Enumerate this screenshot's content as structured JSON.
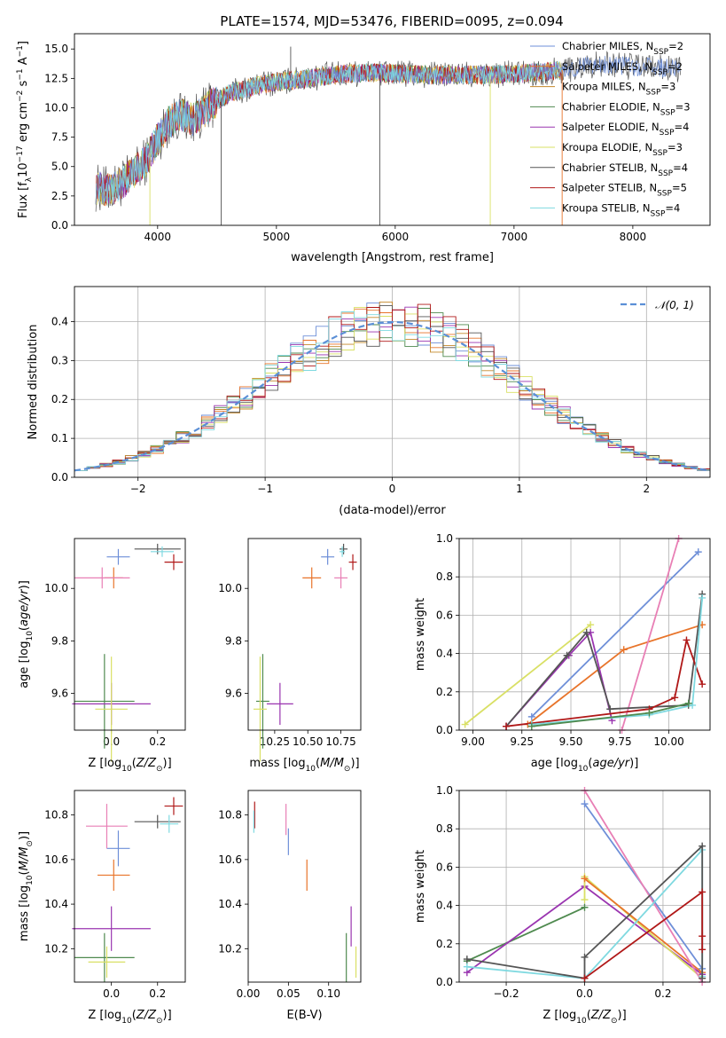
{
  "title": "PLATE=1574, MJD=53476, FIBERID=0095, z=0.094",
  "colors": {
    "Chabrier MILES": "#6e8fd8",
    "Salpeter MILES": "#e8742a",
    "Kroupa MILES": "#c4882a",
    "Chabrier ELODIE": "#4f8a4f",
    "Salpeter ELODIE": "#9a35b0",
    "Kroupa ELODIE": "#d9e065",
    "Chabrier STELIB": "#555555",
    "Salpeter STELIB": "#b01818",
    "Kroupa STELIB": "#7fd9e0",
    "pink": "#e87fb5"
  },
  "chart_data": [
    {
      "id": "spectrum",
      "type": "line",
      "title": "PLATE=1574, MJD=53476, FIBERID=0095, z=0.094",
      "xlabel": "wavelength [Angstrom, rest frame]",
      "ylabel": "Flux [f$_\\lambda$10$^{-17}$ erg cm$^{-2}$ s$^{-1}$ A$^{-1}$]",
      "xlim": [
        3300,
        8650
      ],
      "ylim": [
        0,
        16.3
      ],
      "xticks": [
        4000,
        5000,
        6000,
        7000,
        8000
      ],
      "yticks": [
        0.0,
        2.5,
        5.0,
        7.5,
        10.0,
        12.5,
        15.0
      ],
      "xtick_labels": [
        "4000",
        "5000",
        "6000",
        "7000",
        "8000"
      ],
      "ytick_labels": [
        "0.0",
        "2.5",
        "5.0",
        "7.5",
        "10.0",
        "12.5",
        "15.0"
      ],
      "continuum": {
        "x": [
          3480,
          3600,
          3700,
          3800,
          3900,
          4000,
          4100,
          4200,
          4300,
          4400,
          4500,
          4600,
          4800,
          5000,
          5200,
          5400,
          5600,
          5800,
          6000,
          6200,
          6400,
          6600,
          6800,
          7000,
          7200,
          7400,
          7600,
          7800,
          8000,
          8200,
          8400
        ],
        "y": [
          3.2,
          3.0,
          3.6,
          4.5,
          5.5,
          7.3,
          8.8,
          9.4,
          9.0,
          9.8,
          10.6,
          11.2,
          11.8,
          12.2,
          12.4,
          12.7,
          12.9,
          13.0,
          12.9,
          12.8,
          12.8,
          12.8,
          12.8,
          12.9,
          13.0,
          13.2,
          13.6,
          13.7,
          13.5,
          13.4,
          13.3
        ]
      },
      "legend": {
        "placement": "upper-right",
        "entries": [
          {
            "name": "Chabrier MILES, N$_{SSP}$=2",
            "label": "Chabrier MILES, N",
            "sub": "SSP",
            "suffix": "=2",
            "color_key": "Chabrier MILES"
          },
          {
            "name": "Salpeter MILES, N$_{SSP}$=2",
            "label": "Salpeter MILES, N",
            "sub": "SSP",
            "suffix": "=2",
            "color_key": "Salpeter MILES"
          },
          {
            "name": "Kroupa MILES, N$_{SSP}$=3",
            "label": "Kroupa MILES, N",
            "sub": "SSP",
            "suffix": "=3",
            "color_key": "Kroupa MILES"
          },
          {
            "name": "Chabrier ELODIE, N$_{SSP}$=3",
            "label": "Chabrier ELODIE, N",
            "sub": "SSP",
            "suffix": "=3",
            "color_key": "Chabrier ELODIE"
          },
          {
            "name": "Salpeter ELODIE, N$_{SSP}$=4",
            "label": "Salpeter ELODIE, N",
            "sub": "SSP",
            "suffix": "=4",
            "color_key": "Salpeter ELODIE"
          },
          {
            "name": "Kroupa ELODIE, N$_{SSP}$=3",
            "label": "Kroupa ELODIE, N",
            "sub": "SSP",
            "suffix": "=3",
            "color_key": "Kroupa ELODIE"
          },
          {
            "name": "Chabrier STELIB, N$_{SSP}$=4",
            "label": "Chabrier STELIB, N",
            "sub": "SSP",
            "suffix": "=4",
            "color_key": "Chabrier STELIB"
          },
          {
            "name": "Salpeter STELIB, N$_{SSP}$=5",
            "label": "Salpeter STELIB, N",
            "sub": "SSP",
            "suffix": "=5",
            "color_key": "Salpeter STELIB"
          },
          {
            "name": "Kroupa STELIB, N$_{SSP}$=4",
            "label": "Kroupa STELIB, N",
            "sub": "SSP",
            "suffix": "=4",
            "color_key": "Kroupa STELIB"
          }
        ]
      },
      "grid": false
    },
    {
      "id": "residuals",
      "type": "histogram",
      "xlabel": "(data-model)/error",
      "ylabel": "Normed distribution",
      "xlim": [
        -2.5,
        2.5
      ],
      "ylim": [
        0,
        0.49
      ],
      "xticks": [
        -2,
        -1,
        0,
        1,
        2
      ],
      "yticks": [
        0.0,
        0.1,
        0.2,
        0.3,
        0.4
      ],
      "xtick_labels": [
        "−2",
        "−1",
        "0",
        "1",
        "2"
      ],
      "ytick_labels": [
        "0.0",
        "0.1",
        "0.2",
        "0.3",
        "0.4"
      ],
      "bin_width": 0.1,
      "legend": {
        "placement": "upper-right",
        "entries": [
          {
            "name": "$\\mathcal{N}(0,1)$",
            "label": "𝒩(0, 1)"
          }
        ]
      },
      "grid": true
    },
    {
      "id": "age-vs-Z",
      "type": "errorbar",
      "xlabel": "Z [log$_{10}$(Z/Z$_\\odot$)]",
      "ylabel": "age  [log$_{10}$(age/yr)]",
      "xlim": [
        -0.16,
        0.32
      ],
      "ylim": [
        9.46,
        10.19
      ],
      "xticks": [
        0.0,
        0.2
      ],
      "yticks": [
        9.6,
        9.8,
        10.0
      ],
      "xtick_labels": [
        "0.0",
        "0.2"
      ],
      "ytick_labels": [
        "9.6",
        "9.8",
        "10.0"
      ],
      "points": [
        {
          "c": "Chabrier MILES",
          "x": 0.03,
          "y": 10.12,
          "xe": 0.05,
          "ye": 0.03
        },
        {
          "c": "Salpeter MILES",
          "x": 0.01,
          "y": 10.04,
          "xe": 0.04,
          "ye": 0.04
        },
        {
          "c": "pink",
          "x": -0.04,
          "y": 10.04,
          "xe": 0.12,
          "ye": 0.04
        },
        {
          "c": "Chabrier STELIB",
          "x": 0.2,
          "y": 10.15,
          "xe": 0.1,
          "ye": 0.02
        },
        {
          "c": "Salpeter STELIB",
          "x": 0.27,
          "y": 10.1,
          "xe": 0.04,
          "ye": 0.03
        },
        {
          "c": "Kroupa STELIB",
          "x": 0.22,
          "y": 10.14,
          "xe": 0.05,
          "ye": 0.02
        },
        {
          "c": "Chabrier ELODIE",
          "x": -0.03,
          "y": 9.57,
          "xe": 0.13,
          "ye": 0.18
        },
        {
          "c": "Salpeter ELODIE",
          "x": 0.0,
          "y": 9.56,
          "xe": 0.17,
          "ye": 0.08
        },
        {
          "c": "Kroupa ELODIE",
          "x": 0.0,
          "y": 9.54,
          "xe": 0.07,
          "ye": 0.2
        }
      ]
    },
    {
      "id": "age-vs-mass",
      "type": "errorbar",
      "xlabel": "mass [log$_{10}$(M/M$_\\odot$)]",
      "ylabel": "",
      "xlim": [
        10.05,
        10.9
      ],
      "ylim": [
        9.46,
        10.19
      ],
      "xticks": [
        10.25,
        10.5,
        10.75
      ],
      "yticks": [
        9.6,
        9.8,
        10.0
      ],
      "xtick_labels": [
        "10.25",
        "10.50",
        "10.75"
      ],
      "ytick_labels": [
        "9.6",
        "9.8",
        "10.0"
      ],
      "points": [
        {
          "c": "Chabrier MILES",
          "x": 10.65,
          "y": 10.12,
          "xe": 0.05,
          "ye": 0.03
        },
        {
          "c": "Salpeter MILES",
          "x": 10.53,
          "y": 10.04,
          "xe": 0.07,
          "ye": 0.04
        },
        {
          "c": "pink",
          "x": 10.75,
          "y": 10.04,
          "xe": 0.05,
          "ye": 0.04
        },
        {
          "c": "Chabrier STELIB",
          "x": 10.77,
          "y": 10.15,
          "xe": 0.03,
          "ye": 0.02
        },
        {
          "c": "Salpeter STELIB",
          "x": 10.84,
          "y": 10.1,
          "xe": 0.03,
          "ye": 0.03
        },
        {
          "c": "Kroupa STELIB",
          "x": 10.76,
          "y": 10.14,
          "xe": 0.02,
          "ye": 0.02
        },
        {
          "c": "Chabrier ELODIE",
          "x": 10.16,
          "y": 9.57,
          "xe": 0.05,
          "ye": 0.18
        },
        {
          "c": "Salpeter ELODIE",
          "x": 10.29,
          "y": 9.56,
          "xe": 0.1,
          "ye": 0.08
        },
        {
          "c": "Kroupa ELODIE",
          "x": 10.14,
          "y": 9.54,
          "xe": 0.05,
          "ye": 0.2
        }
      ]
    },
    {
      "id": "weight-vs-age",
      "type": "line",
      "xlabel": "age  [log$_{10}$(age/yr)]",
      "ylabel": "mass weight",
      "xlim": [
        8.93,
        10.21
      ],
      "ylim": [
        0,
        1.0
      ],
      "xticks": [
        9.0,
        9.25,
        9.5,
        9.75,
        10.0
      ],
      "yticks": [
        0.0,
        0.2,
        0.4,
        0.6,
        0.8,
        1.0
      ],
      "xtick_labels": [
        "9.00",
        "9.25",
        "9.50",
        "9.75",
        "10.00"
      ],
      "ytick_labels": [
        "0.0",
        "0.2",
        "0.4",
        "0.6",
        "0.8",
        "1.0"
      ],
      "grid": true,
      "series": [
        {
          "c": "Kroupa ELODIE",
          "x": [
            8.96,
            9.6
          ],
          "y": [
            0.03,
            0.55
          ]
        },
        {
          "c": "Chabrier MILES",
          "x": [
            9.3,
            10.15
          ],
          "y": [
            0.07,
            0.93
          ]
        },
        {
          "c": "Salpeter MILES",
          "x": [
            9.28,
            9.77,
            10.17
          ],
          "y": [
            0.03,
            0.42,
            0.55
          ]
        },
        {
          "c": "Salpeter ELODIE",
          "x": [
            9.17,
            9.49,
            9.6,
            9.71
          ],
          "y": [
            0.02,
            0.39,
            0.51,
            0.05
          ]
        },
        {
          "c": "pink",
          "x": [
            9.76,
            10.05
          ],
          "y": [
            0.0,
            1.0
          ]
        },
        {
          "c": "Chabrier STELIB",
          "x": [
            9.17,
            9.48,
            9.58,
            9.7,
            10.1,
            10.17
          ],
          "y": [
            0.02,
            0.39,
            0.51,
            0.11,
            0.13,
            0.71
          ]
        },
        {
          "c": "Salpeter STELIB",
          "x": [
            9.17,
            9.9,
            10.03,
            10.09,
            10.17
          ],
          "y": [
            0.02,
            0.11,
            0.17,
            0.47,
            0.24
          ]
        },
        {
          "c": "Kroupa STELIB",
          "x": [
            9.3,
            9.9,
            10.12,
            10.17
          ],
          "y": [
            0.03,
            0.08,
            0.13,
            0.69
          ]
        },
        {
          "c": "Chabrier ELODIE",
          "x": [
            9.3,
            9.9,
            10.1
          ],
          "y": [
            0.02,
            0.09,
            0.14
          ]
        }
      ]
    },
    {
      "id": "mass-vs-Z",
      "type": "errorbar",
      "xlabel": "Z [log$_{10}$(Z/Z$_\\odot$)]",
      "ylabel": "mass [log$_{10}$(M/M$_\\odot$)]",
      "xlim": [
        -0.16,
        0.32
      ],
      "ylim": [
        10.05,
        10.91
      ],
      "xticks": [
        0.0,
        0.2
      ],
      "yticks": [
        10.2,
        10.4,
        10.6,
        10.8
      ],
      "xtick_labels": [
        "0.0",
        "0.2"
      ],
      "ytick_labels": [
        "10.2",
        "10.4",
        "10.6",
        "10.8"
      ],
      "points": [
        {
          "c": "Chabrier MILES",
          "x": 0.03,
          "y": 10.65,
          "xe": 0.05,
          "ye": 0.08
        },
        {
          "c": "Salpeter MILES",
          "x": 0.01,
          "y": 10.53,
          "xe": 0.07,
          "ye": 0.07
        },
        {
          "c": "pink",
          "x": -0.02,
          "y": 10.75,
          "xe": 0.09,
          "ye": 0.1
        },
        {
          "c": "Chabrier STELIB",
          "x": 0.2,
          "y": 10.77,
          "xe": 0.1,
          "ye": 0.03
        },
        {
          "c": "Salpeter STELIB",
          "x": 0.27,
          "y": 10.84,
          "xe": 0.04,
          "ye": 0.04
        },
        {
          "c": "Kroupa STELIB",
          "x": 0.25,
          "y": 10.76,
          "xe": 0.04,
          "ye": 0.04
        },
        {
          "c": "Chabrier ELODIE",
          "x": -0.03,
          "y": 10.16,
          "xe": 0.13,
          "ye": 0.11
        },
        {
          "c": "Salpeter ELODIE",
          "x": 0.0,
          "y": 10.29,
          "xe": 0.17,
          "ye": 0.1
        },
        {
          "c": "Kroupa ELODIE",
          "x": -0.02,
          "y": 10.14,
          "xe": 0.08,
          "ye": 0.07
        }
      ]
    },
    {
      "id": "mass-vs-EBV",
      "type": "errorbar",
      "xlabel": "E(B-V)",
      "ylabel": "",
      "xlim": [
        0.0,
        0.14
      ],
      "ylim": [
        10.05,
        10.91
      ],
      "xticks": [
        0.0,
        0.05,
        0.1
      ],
      "yticks": [
        10.2,
        10.4,
        10.6,
        10.8
      ],
      "xtick_labels": [
        "0.00",
        "0.05",
        "0.10"
      ],
      "ytick_labels": [
        "10.2",
        "10.4",
        "10.6",
        "10.8"
      ],
      "points": [
        {
          "c": "Salpeter STELIB",
          "x": 0.008,
          "y": 10.8,
          "xe": 0.0,
          "ye": 0.06
        },
        {
          "c": "Kroupa STELIB",
          "x": 0.007,
          "y": 10.77,
          "xe": 0.0,
          "ye": 0.05
        },
        {
          "c": "pink",
          "x": 0.047,
          "y": 10.78,
          "xe": 0.0,
          "ye": 0.07
        },
        {
          "c": "Chabrier MILES",
          "x": 0.05,
          "y": 10.68,
          "xe": 0.0,
          "ye": 0.06
        },
        {
          "c": "Salpeter MILES",
          "x": 0.073,
          "y": 10.53,
          "xe": 0.0,
          "ye": 0.07
        },
        {
          "c": "Salpeter ELODIE",
          "x": 0.128,
          "y": 10.3,
          "xe": 0.0,
          "ye": 0.09
        },
        {
          "c": "Chabrier ELODIE",
          "x": 0.122,
          "y": 10.16,
          "xe": 0.0,
          "ye": 0.11
        },
        {
          "c": "Kroupa ELODIE",
          "x": 0.134,
          "y": 10.14,
          "xe": 0.0,
          "ye": 0.07
        }
      ]
    },
    {
      "id": "weight-vs-Z",
      "type": "line",
      "xlabel": "Z [log$_{10}$(Z/Z$_\\odot$)]",
      "ylabel": "mass weight",
      "xlim": [
        -0.32,
        0.32
      ],
      "ylim": [
        0,
        1.0
      ],
      "xticks": [
        -0.2,
        0.0,
        0.2
      ],
      "yticks": [
        0.0,
        0.2,
        0.4,
        0.6,
        0.8,
        1.0
      ],
      "xtick_labels": [
        "−0.2",
        "0.0",
        "0.2"
      ],
      "ytick_labels": [
        "0.0",
        "0.2",
        "0.4",
        "0.6",
        "0.8",
        "1.0"
      ],
      "grid": true,
      "series": [
        {
          "c": "Chabrier ELODIE",
          "x": [
            -0.3,
            0.0
          ],
          "y": [
            0.11,
            0.39
          ]
        },
        {
          "c": "Salpeter ELODIE",
          "x": [
            -0.3,
            0.0,
            0.3
          ],
          "y": [
            0.05,
            0.5,
            0.04
          ]
        },
        {
          "c": "Kroupa ELODIE",
          "x": [
            0.0,
            0.0,
            0.3
          ],
          "y": [
            0.43,
            0.55,
            0.02
          ]
        },
        {
          "c": "Salpeter MILES",
          "x": [
            0.0,
            0.3
          ],
          "y": [
            0.54,
            0.05
          ]
        },
        {
          "c": "Chabrier MILES",
          "x": [
            0.0,
            0.3
          ],
          "y": [
            0.93,
            0.07
          ]
        },
        {
          "c": "pink",
          "x": [
            0.0,
            0.3
          ],
          "y": [
            1.0,
            0.0
          ]
        },
        {
          "c": "Kroupa STELIB",
          "x": [
            -0.3,
            0.0,
            0.3,
            0.3
          ],
          "y": [
            0.08,
            0.02,
            0.69,
            0.03
          ]
        },
        {
          "c": "Chabrier STELIB",
          "x": [
            -0.3,
            0.0,
            0.0,
            0.3,
            0.3
          ],
          "y": [
            0.12,
            0.02,
            0.13,
            0.71,
            0.02
          ]
        },
        {
          "c": "Salpeter STELIB",
          "x": [
            0.0,
            0.3,
            0.3,
            0.3
          ],
          "y": [
            0.02,
            0.47,
            0.24,
            0.17
          ]
        }
      ]
    }
  ]
}
